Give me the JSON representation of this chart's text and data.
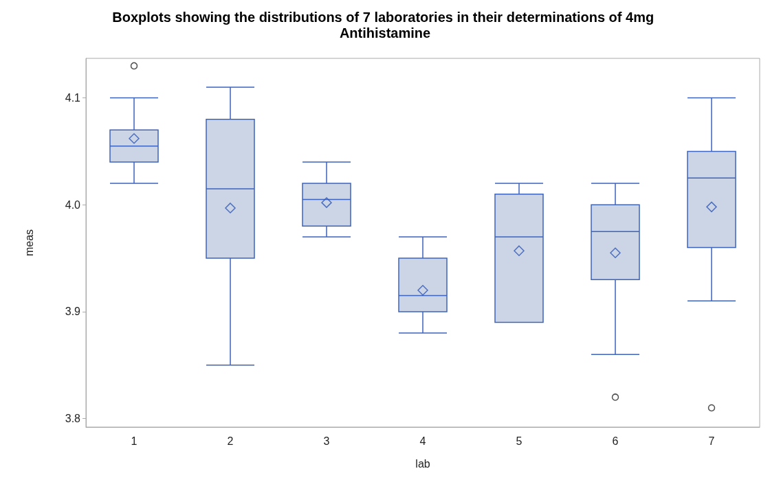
{
  "chart_data": {
    "type": "box",
    "title": "Boxplots showing the distributions of 7 laboratories in their determinations of 4mg Antihistamine",
    "xlabel": "lab",
    "ylabel": "meas",
    "categories": [
      "1",
      "2",
      "3",
      "4",
      "5",
      "6",
      "7"
    ],
    "color": "#cbd5e6",
    "marker": "diamond",
    "grid": false,
    "ylim": [
      3.792,
      4.137
    ],
    "yticks": [
      3.8,
      3.9,
      {
        "value": 4,
        "label": "4.0"
      },
      4.1
    ],
    "boxes": [
      {
        "low": 4.02,
        "q1": 4.04,
        "median": 4.055,
        "q3": 4.07,
        "high": 4.1,
        "mean": 4.062,
        "outliers": [
          4.13
        ]
      },
      {
        "low": 3.85,
        "q1": 3.95,
        "median": 4.015,
        "q3": 4.08,
        "high": 4.11,
        "mean": 3.997
      },
      {
        "low": 3.97,
        "q1": 3.98,
        "median": 4.005,
        "q3": 4.02,
        "high": 4.04,
        "mean": 4.002
      },
      {
        "low": 3.88,
        "q1": 3.9,
        "median": 3.915,
        "q3": 3.95,
        "high": 3.97,
        "mean": 3.92
      },
      {
        "low": 3.89,
        "q1": 3.89,
        "median": 3.97,
        "q3": 4.01,
        "high": 4.02,
        "mean": 3.957
      },
      {
        "low": 3.86,
        "q1": 3.93,
        "median": 3.975,
        "q3": 4.0,
        "high": 4.02,
        "mean": 3.955,
        "outliers": [
          3.82
        ]
      },
      {
        "low": 3.91,
        "q1": 3.96,
        "median": 4.025,
        "q3": 4.05,
        "high": 4.1,
        "mean": 3.998,
        "outliers": [
          3.81
        ]
      }
    ]
  }
}
